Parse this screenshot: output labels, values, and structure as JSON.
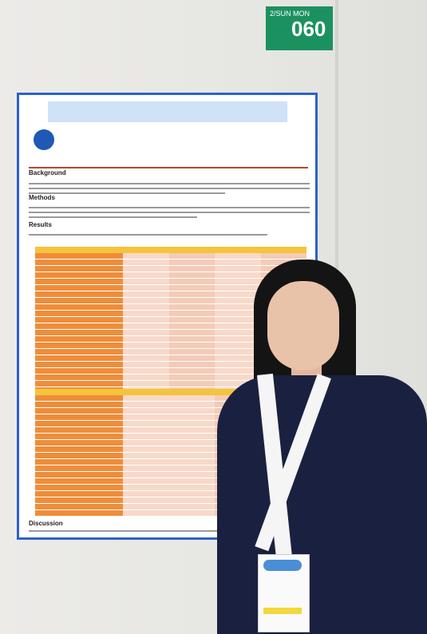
{
  "scene": {
    "description_tags": [
      "poster",
      "conference",
      "presenter"
    ]
  },
  "sign": {
    "small_text": "2/SUN MON",
    "number": "060"
  },
  "poster": {
    "sections": [
      "Background",
      "Methods",
      "Results",
      "Discussion"
    ]
  },
  "colors": {
    "poster_border": "#2a63c8",
    "table_orange": "#ef8d3a",
    "table_header_yellow": "#f6c33c",
    "sign_green": "#1b9160"
  }
}
